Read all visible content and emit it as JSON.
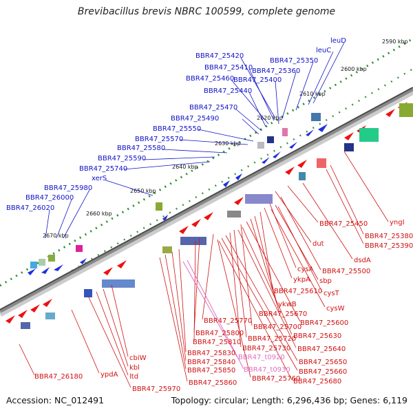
{
  "title": "Brevibacillus brevis NBRC 100599, complete genome",
  "footer": {
    "accession": "Accession: NC_012491",
    "summary": "Topology: circular; Length: 6,296,436 bp; Genes: 6,119"
  },
  "ticks": [
    "2590 kbp",
    "2600 kbp",
    "2610 kbp",
    "2620 kbp",
    "2630 kbp",
    "2640 kbp",
    "2650 kbp",
    "2660 kbp",
    "2670 kbp"
  ],
  "labels_top": [
    "leuD",
    "leuC",
    "BBR47_25350",
    "BBR47_25360",
    "BBR47_25420",
    "BBR47_25410",
    "BBR47_25400",
    "BBR47_25460",
    "BBR47_25440",
    "BBR47_25470",
    "BBR47_25490",
    "BBR47_25550",
    "BBR47_25570",
    "BBR47_25580",
    "BBR47_25590",
    "BBR47_25740",
    "xerS",
    "BBR47_25980",
    "BBR47_26000",
    "BBR47_26020"
  ],
  "labels_bottom": [
    "yngI",
    "BBR47_25380",
    "BBR47_25390",
    "BBR47_25450",
    "dsdA",
    "dut",
    "BBR47_25500",
    "cysA",
    "sbp",
    "ykpA",
    "BBR47_25610",
    "cysT",
    "cysW",
    "ykwB",
    "BBR47_25670",
    "BBR47_25600",
    "BBR47_25770",
    "BBR47_25700",
    "BBR47_25630",
    "BBR47_25800",
    "BBR47_25720",
    "BBR47_25810",
    "BBR47_25730",
    "BBR47_25640",
    "BBR47_25830",
    "BBR47_t0920",
    "BBR47_25650",
    "BBR47_25840",
    "BBR47_25660",
    "BBR47_25850",
    "BBR47_t0930",
    "BBR47_25760",
    "BBR47_25680",
    "BBR47_25860",
    "cbiW",
    "kbl",
    "ltd",
    "ypdA",
    "BBR47_25970",
    "BBR47_26180"
  ],
  "colors": {
    "label_blue": "#1010c8",
    "label_red": "#d01010",
    "label_pink": "#e070c0",
    "forward_arrow": "#1f2fe0",
    "reverse_arrow": "#ee1111",
    "backbone": "#888888",
    "tick_green": "#2a8a2a"
  }
}
